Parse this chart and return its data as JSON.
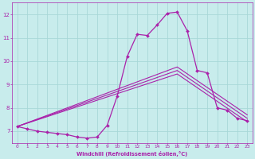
{
  "xlabel": "Windchill (Refroidissement éolien,°C)",
  "xlim": [
    -0.5,
    23.5
  ],
  "ylim": [
    6.5,
    12.5
  ],
  "yticks": [
    7,
    8,
    9,
    10,
    11,
    12
  ],
  "xticks": [
    0,
    1,
    2,
    3,
    4,
    5,
    6,
    7,
    8,
    9,
    10,
    11,
    12,
    13,
    14,
    15,
    16,
    17,
    18,
    19,
    20,
    21,
    22,
    23
  ],
  "bg_color": "#c8ecec",
  "grid_color": "#a8d8d8",
  "line_color": "#aa22aa",
  "series": [
    {
      "x": [
        0,
        1,
        2,
        3,
        4,
        5,
        6,
        7,
        8,
        9,
        10,
        11,
        12,
        13,
        14,
        15,
        16,
        17,
        18,
        19,
        20,
        21,
        22,
        23
      ],
      "y": [
        7.2,
        7.1,
        7.0,
        6.95,
        6.9,
        6.85,
        6.75,
        6.7,
        6.75,
        7.25,
        8.5,
        10.2,
        11.15,
        11.1,
        11.55,
        12.05,
        12.1,
        11.3,
        9.6,
        9.5,
        8.0,
        7.9,
        7.55,
        7.45
      ],
      "marker": "D",
      "markersize": 2.0,
      "linewidth": 0.9
    },
    {
      "x": [
        0,
        16,
        23
      ],
      "y": [
        7.2,
        9.6,
        7.55
      ],
      "marker": null,
      "linewidth": 0.8
    },
    {
      "x": [
        0,
        16,
        23
      ],
      "y": [
        7.2,
        9.75,
        7.7
      ],
      "marker": null,
      "linewidth": 0.8
    },
    {
      "x": [
        0,
        16,
        23
      ],
      "y": [
        7.2,
        9.45,
        7.4
      ],
      "marker": null,
      "linewidth": 0.8
    }
  ]
}
